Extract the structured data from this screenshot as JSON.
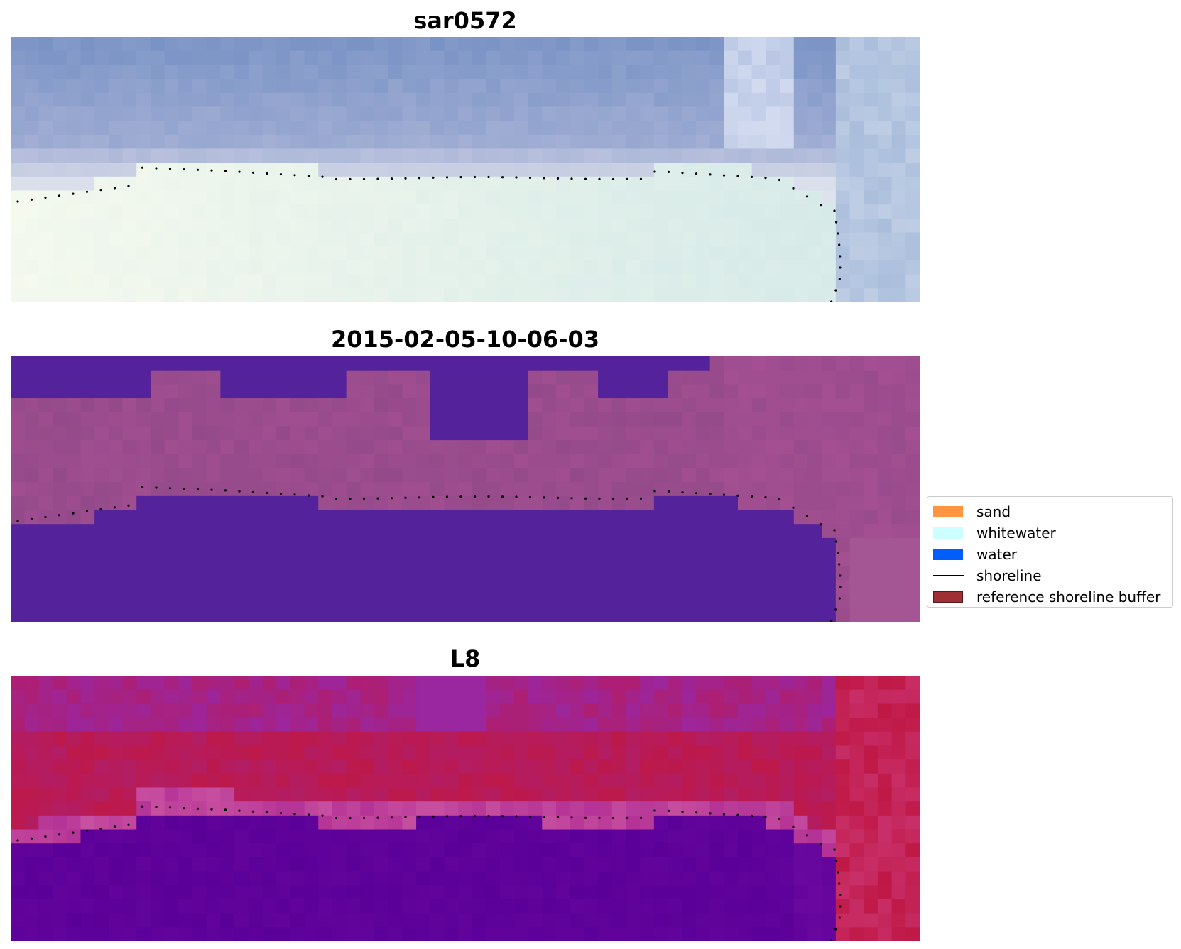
{
  "panels": [
    {
      "title": "sar0572",
      "palette": "rgb"
    },
    {
      "title": "2015-02-05-10-06-03",
      "palette": "classified"
    },
    {
      "title": "L8",
      "palette": "index"
    }
  ],
  "legend": {
    "items": [
      {
        "label": "sand",
        "kind": "patch",
        "color": "#ff9540",
        "edge": "#ff9540"
      },
      {
        "label": "whitewater",
        "kind": "patch",
        "color": "#ccffff",
        "edge": "#ccffff"
      },
      {
        "label": "water",
        "kind": "patch",
        "color": "#005eff",
        "edge": "#005eff"
      },
      {
        "label": "shoreline",
        "kind": "line",
        "color": "#000000",
        "edge": "#000000"
      },
      {
        "label": "reference shoreline buffer",
        "kind": "patch",
        "color": "#9e3035",
        "edge": "#5a1a1d"
      }
    ]
  },
  "colors": {
    "classified_water": "#54229a",
    "classified_land": "#944a8a",
    "index_low": "#5a0099",
    "index_high": "#bf1845",
    "shoreline": "#000000"
  }
}
